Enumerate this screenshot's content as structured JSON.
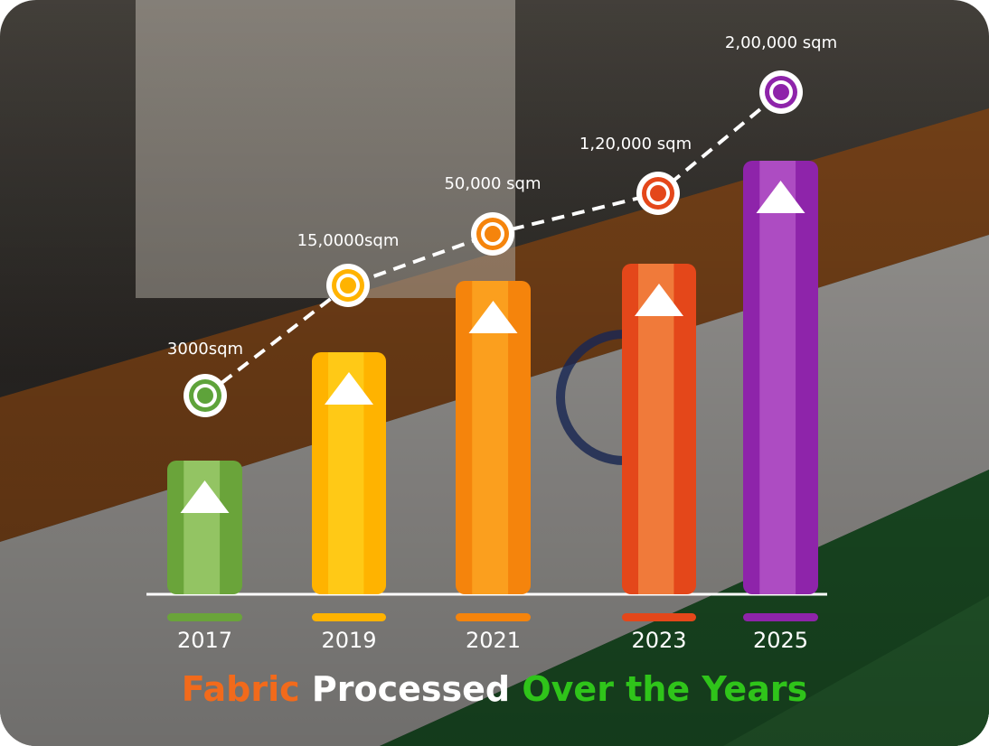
{
  "title": {
    "parts": [
      "Fabric",
      "Processed",
      "Over the Years"
    ]
  },
  "items": [
    {
      "year": "2017",
      "label": "3000sqm"
    },
    {
      "year": "2019",
      "label": "15,0000sqm"
    },
    {
      "year": "2021",
      "label": "50,000 sqm"
    },
    {
      "year": "2023",
      "label": "1,20,000 sqm"
    },
    {
      "year": "2025",
      "label": "2,00,000 sqm"
    }
  ]
}
